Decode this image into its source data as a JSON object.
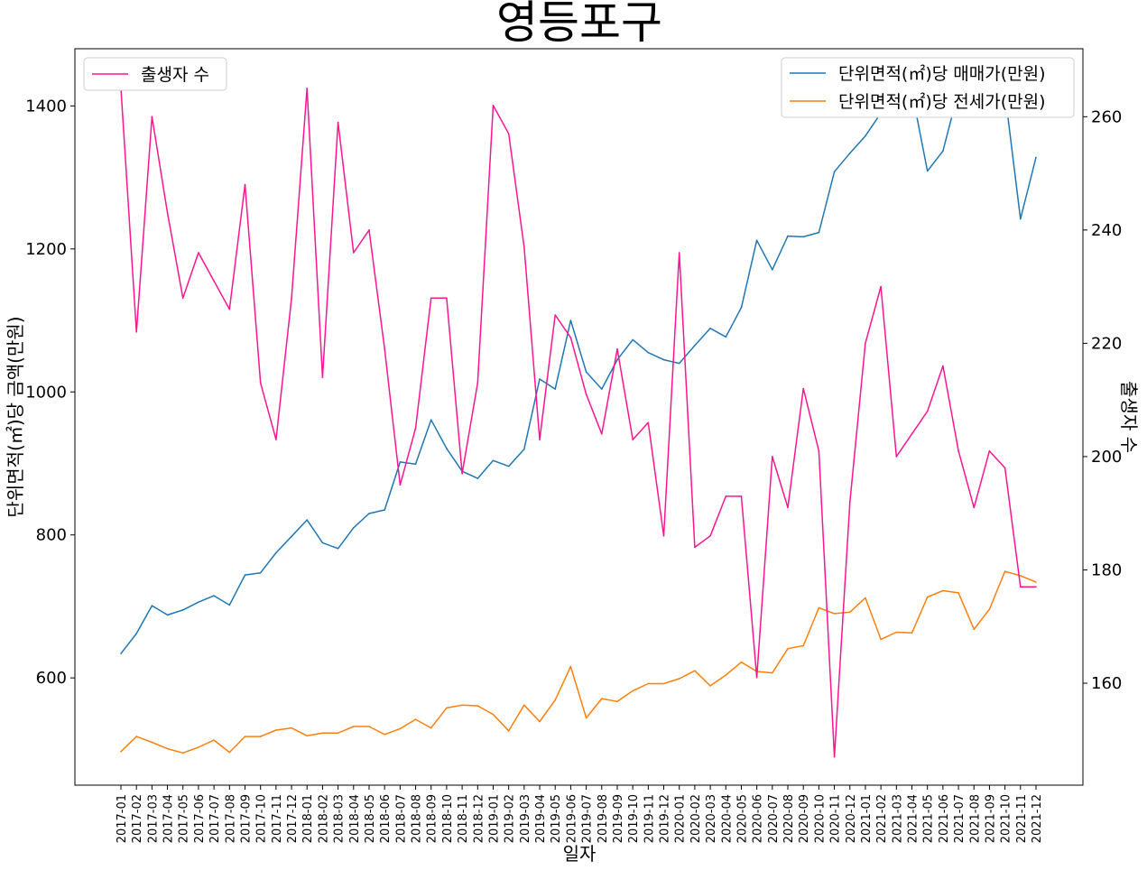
{
  "chart_data": {
    "type": "line",
    "title": "영등포구",
    "xlabel": "일자",
    "ylabel_left": "단위면적(㎡)당 금액(만원)",
    "ylabel_right": "출생자 수",
    "ylim_left": [
      450,
      1480
    ],
    "ylim_right": [
      142,
      272
    ],
    "yticks_left": [
      600,
      800,
      1000,
      1200,
      1400
    ],
    "yticks_right": [
      160,
      180,
      200,
      220,
      240,
      260
    ],
    "grid": false,
    "legend_left": {
      "placement": "top-left",
      "entries": [
        "출생자 수"
      ]
    },
    "legend_right": {
      "placement": "top-right",
      "entries": [
        "단위면적(㎡)당 매매가(만원)",
        "단위면적(㎡)당 전세가(만원)"
      ]
    },
    "categories": [
      "2017-01",
      "2017-02",
      "2017-03",
      "2017-04",
      "2017-05",
      "2017-06",
      "2017-07",
      "2017-08",
      "2017-09",
      "2017-10",
      "2017-11",
      "2017-12",
      "2018-01",
      "2018-02",
      "2018-03",
      "2018-04",
      "2018-05",
      "2018-06",
      "2018-07",
      "2018-08",
      "2018-09",
      "2018-10",
      "2018-11",
      "2018-12",
      "2019-01",
      "2019-02",
      "2019-03",
      "2019-04",
      "2019-05",
      "2019-06",
      "2019-07",
      "2019-08",
      "2019-09",
      "2019-10",
      "2019-11",
      "2019-12",
      "2020-01",
      "2020-02",
      "2020-03",
      "2020-04",
      "2020-05",
      "2020-06",
      "2020-07",
      "2020-08",
      "2020-09",
      "2020-10",
      "2020-11",
      "2020-12",
      "2021-01",
      "2021-02",
      "2021-03",
      "2021-04",
      "2021-05",
      "2021-06",
      "2021-07",
      "2021-08",
      "2021-09",
      "2021-10",
      "2021-11",
      "2021-12"
    ],
    "tick_labels": [
      "2017-01",
      "2017-02",
      "2017-03",
      "2017-04",
      "2017-05",
      "2017-06",
      "2017-07",
      "2017-08",
      "2017-09",
      "2017-10",
      "2017-11",
      "2017-12",
      "2018-01",
      "2018-02",
      "2018-03",
      "2018-04",
      "2018-05",
      "2018-06",
      "2018-07",
      "2018-08",
      "2018-09",
      "2018-10",
      "2018-11",
      "2018-12",
      "2019-01",
      "2019-02",
      "2019-03",
      "2019-04",
      "2019-05",
      "2019-06",
      "2019-07",
      "2019-08",
      "2019-09",
      "2019-10",
      "2019-11",
      "2019-12",
      "2020-01",
      "2020-02",
      "2020-03",
      "2020-04",
      "2020-05",
      "2020-06",
      "2020-07",
      "2020-08",
      "2020-09",
      "2020-10",
      "2020-11",
      "2020-12",
      "2021-01",
      "2021-02",
      "2021-03",
      "2021-04",
      "2021-05",
      "2021-06",
      "2021-07",
      "2021-08",
      "2021-09",
      "2021-10",
      "2021-11",
      "2021-12"
    ],
    "series": [
      {
        "name": "단위면적(㎡)당 매매가(만원)",
        "axis": "left",
        "color": "#1f77b4",
        "values": [
          634,
          662,
          701,
          688,
          695,
          706,
          715,
          702,
          744,
          747,
          775,
          798,
          821,
          789,
          781,
          810,
          830,
          835,
          902,
          899,
          961,
          921,
          889,
          879,
          904,
          896,
          920,
          1018,
          1004,
          1100,
          1028,
          1004,
          1045,
          1073,
          1055,
          1045,
          1040,
          1065,
          1089,
          1077,
          1118,
          1212,
          1171,
          1218,
          1217,
          1223,
          1308,
          1334,
          1358,
          1390,
          1423,
          1420,
          1309,
          1337,
          1421,
          1434,
          1427,
          1418,
          1242,
          1328
        ]
      },
      {
        "name": "단위면적(㎡)당 전세가(만원)",
        "axis": "left",
        "color": "#ff7f0e",
        "values": [
          497,
          518,
          510,
          501,
          495,
          503,
          513,
          496,
          518,
          518,
          527,
          530,
          519,
          523,
          523,
          532,
          532,
          521,
          529,
          542,
          530,
          558,
          562,
          561,
          549,
          526,
          562,
          539,
          569,
          616,
          544,
          571,
          567,
          582,
          592,
          592,
          599,
          610,
          589,
          604,
          622,
          609,
          607,
          641,
          645,
          698,
          690,
          692,
          712,
          654,
          664,
          663,
          713,
          722,
          719,
          668,
          696,
          749,
          743,
          734
        ]
      },
      {
        "name": "출생자 수",
        "axis": "right",
        "color": "#ff1493",
        "values": [
          265,
          222,
          260,
          243,
          228,
          236,
          231,
          226,
          248,
          213,
          203,
          228,
          265,
          214,
          259,
          236,
          240,
          219,
          195,
          205,
          228,
          228,
          197,
          213,
          262,
          257,
          237,
          203,
          225,
          221,
          211,
          204,
          219,
          203,
          206,
          186,
          236,
          184,
          186,
          193,
          193,
          161,
          200,
          191,
          212,
          201,
          147,
          192,
          220,
          230,
          200,
          204,
          208,
          216,
          201,
          191,
          201,
          198,
          177,
          177
        ]
      }
    ]
  }
}
